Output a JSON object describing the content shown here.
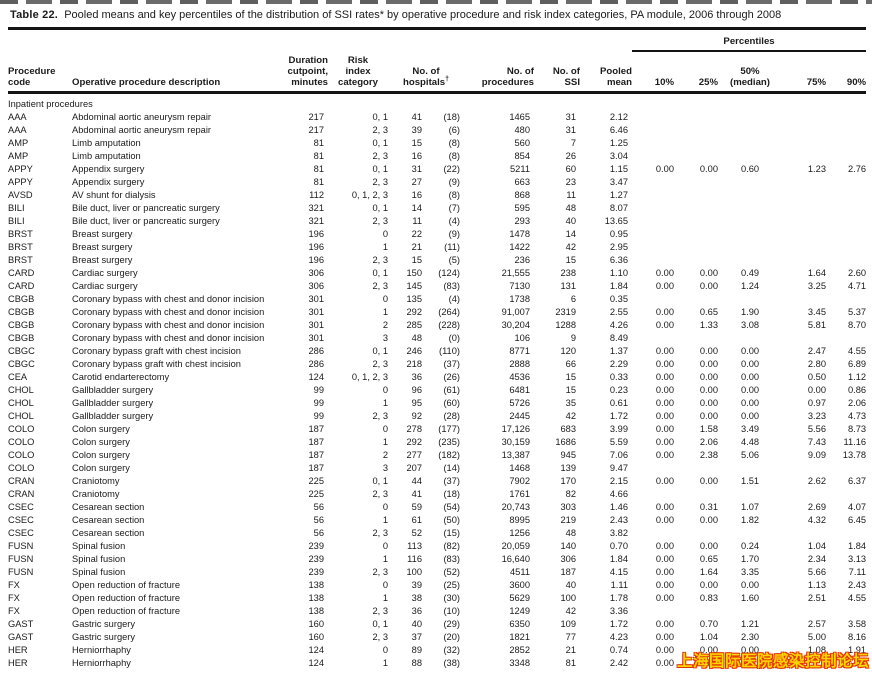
{
  "title": {
    "label": "Table 22.",
    "text": "Pooled means and key percentiles of the distribution of SSI rates* by operative procedure and risk index categories, PA module, 2006 through 2008"
  },
  "header": {
    "percentiles_label": "Percentiles",
    "columns": {
      "code": "Procedure\ncode",
      "desc": "Operative procedure description",
      "duration": "Duration\ncutpoint,\nminutes",
      "risk": "Risk\nindex\ncategory",
      "hospitals": "No. of\nhospitals",
      "hospitals_sup": "†",
      "procedures": "No. of\nprocedures",
      "ssi": "No. of\nSSI",
      "mean": "Pooled\nmean",
      "p10": "10%",
      "p25": "25%",
      "p50": "50%\n(median)",
      "p75": "75%",
      "p90": "90%"
    }
  },
  "table": {
    "section_label": "Inpatient procedures",
    "rows": [
      [
        "AAA",
        "Abdominal aortic aneurysm repair",
        "217",
        "0, 1",
        "41",
        "(18)",
        "1465",
        "31",
        "2.12",
        "",
        "",
        "",
        "",
        ""
      ],
      [
        "AAA",
        "Abdominal aortic aneurysm repair",
        "217",
        "2, 3",
        "39",
        "(6)",
        "480",
        "31",
        "6.46",
        "",
        "",
        "",
        "",
        ""
      ],
      [
        "AMP",
        "Limb amputation",
        "81",
        "0, 1",
        "15",
        "(8)",
        "560",
        "7",
        "1.25",
        "",
        "",
        "",
        "",
        ""
      ],
      [
        "AMP",
        "Limb amputation",
        "81",
        "2, 3",
        "16",
        "(8)",
        "854",
        "26",
        "3.04",
        "",
        "",
        "",
        "",
        ""
      ],
      [
        "APPY",
        "Appendix surgery",
        "81",
        "0, 1",
        "31",
        "(22)",
        "5211",
        "60",
        "1.15",
        "0.00",
        "0.00",
        "0.60",
        "1.23",
        "2.76"
      ],
      [
        "APPY",
        "Appendix surgery",
        "81",
        "2, 3",
        "27",
        "(9)",
        "663",
        "23",
        "3.47",
        "",
        "",
        "",
        "",
        ""
      ],
      [
        "AVSD",
        "AV shunt for dialysis",
        "112",
        "0, 1, 2, 3",
        "16",
        "(8)",
        "868",
        "11",
        "1.27",
        "",
        "",
        "",
        "",
        ""
      ],
      [
        "BILI",
        "Bile duct, liver or pancreatic surgery",
        "321",
        "0, 1",
        "14",
        "(7)",
        "595",
        "48",
        "8.07",
        "",
        "",
        "",
        "",
        ""
      ],
      [
        "BILI",
        "Bile duct, liver or pancreatic surgery",
        "321",
        "2, 3",
        "11",
        "(4)",
        "293",
        "40",
        "13.65",
        "",
        "",
        "",
        "",
        ""
      ],
      [
        "BRST",
        "Breast surgery",
        "196",
        "0",
        "22",
        "(9)",
        "1478",
        "14",
        "0.95",
        "",
        "",
        "",
        "",
        ""
      ],
      [
        "BRST",
        "Breast surgery",
        "196",
        "1",
        "21",
        "(11)",
        "1422",
        "42",
        "2.95",
        "",
        "",
        "",
        "",
        ""
      ],
      [
        "BRST",
        "Breast surgery",
        "196",
        "2, 3",
        "15",
        "(5)",
        "236",
        "15",
        "6.36",
        "",
        "",
        "",
        "",
        ""
      ],
      [
        "CARD",
        "Cardiac surgery",
        "306",
        "0, 1",
        "150",
        "(124)",
        "21,555",
        "238",
        "1.10",
        "0.00",
        "0.00",
        "0.49",
        "1.64",
        "2.60"
      ],
      [
        "CARD",
        "Cardiac surgery",
        "306",
        "2, 3",
        "145",
        "(83)",
        "7130",
        "131",
        "1.84",
        "0.00",
        "0.00",
        "1.24",
        "3.25",
        "4.71"
      ],
      [
        "CBGB",
        "Coronary bypass with chest and donor incision",
        "301",
        "0",
        "135",
        "(4)",
        "1738",
        "6",
        "0.35",
        "",
        "",
        "",
        "",
        ""
      ],
      [
        "CBGB",
        "Coronary bypass with chest and donor incision",
        "301",
        "1",
        "292",
        "(264)",
        "91,007",
        "2319",
        "2.55",
        "0.00",
        "0.65",
        "1.90",
        "3.45",
        "5.37"
      ],
      [
        "CBGB",
        "Coronary bypass with chest and donor incision",
        "301",
        "2",
        "285",
        "(228)",
        "30,204",
        "1288",
        "4.26",
        "0.00",
        "1.33",
        "3.08",
        "5.81",
        "8.70"
      ],
      [
        "CBGB",
        "Coronary bypass with chest and donor incision",
        "301",
        "3",
        "48",
        "(0)",
        "106",
        "9",
        "8.49",
        "",
        "",
        "",
        "",
        ""
      ],
      [
        "CBGC",
        "Coronary bypass graft with chest incision",
        "286",
        "0, 1",
        "246",
        "(110)",
        "8771",
        "120",
        "1.37",
        "0.00",
        "0.00",
        "0.00",
        "2.47",
        "4.55"
      ],
      [
        "CBGC",
        "Coronary bypass graft with chest incision",
        "286",
        "2, 3",
        "218",
        "(37)",
        "2888",
        "66",
        "2.29",
        "0.00",
        "0.00",
        "0.00",
        "2.80",
        "6.89"
      ],
      [
        "CEA",
        "Carotid endarterectomy",
        "124",
        "0, 1, 2, 3",
        "36",
        "(26)",
        "4536",
        "15",
        "0.33",
        "0.00",
        "0.00",
        "0.00",
        "0.50",
        "1.12"
      ],
      [
        "CHOL",
        "Gallbladder surgery",
        "99",
        "0",
        "96",
        "(61)",
        "6481",
        "15",
        "0.23",
        "0.00",
        "0.00",
        "0.00",
        "0.00",
        "0.86"
      ],
      [
        "CHOL",
        "Gallbladder surgery",
        "99",
        "1",
        "95",
        "(60)",
        "5726",
        "35",
        "0.61",
        "0.00",
        "0.00",
        "0.00",
        "0.97",
        "2.06"
      ],
      [
        "CHOL",
        "Gallbladder surgery",
        "99",
        "2, 3",
        "92",
        "(28)",
        "2445",
        "42",
        "1.72",
        "0.00",
        "0.00",
        "0.00",
        "3.23",
        "4.73"
      ],
      [
        "COLO",
        "Colon surgery",
        "187",
        "0",
        "278",
        "(177)",
        "17,126",
        "683",
        "3.99",
        "0.00",
        "1.58",
        "3.49",
        "5.56",
        "8.73"
      ],
      [
        "COLO",
        "Colon surgery",
        "187",
        "1",
        "292",
        "(235)",
        "30,159",
        "1686",
        "5.59",
        "0.00",
        "2.06",
        "4.48",
        "7.43",
        "11.16"
      ],
      [
        "COLO",
        "Colon surgery",
        "187",
        "2",
        "277",
        "(182)",
        "13,387",
        "945",
        "7.06",
        "0.00",
        "2.38",
        "5.06",
        "9.09",
        "13.78"
      ],
      [
        "COLO",
        "Colon surgery",
        "187",
        "3",
        "207",
        "(14)",
        "1468",
        "139",
        "9.47",
        "",
        "",
        "",
        "",
        ""
      ],
      [
        "CRAN",
        "Craniotomy",
        "225",
        "0, 1",
        "44",
        "(37)",
        "7902",
        "170",
        "2.15",
        "0.00",
        "0.00",
        "1.51",
        "2.62",
        "6.37"
      ],
      [
        "CRAN",
        "Craniotomy",
        "225",
        "2, 3",
        "41",
        "(18)",
        "1761",
        "82",
        "4.66",
        "",
        "",
        "",
        "",
        ""
      ],
      [
        "CSEC",
        "Cesarean section",
        "56",
        "0",
        "59",
        "(54)",
        "20,743",
        "303",
        "1.46",
        "0.00",
        "0.31",
        "1.07",
        "2.69",
        "4.07"
      ],
      [
        "CSEC",
        "Cesarean section",
        "56",
        "1",
        "61",
        "(50)",
        "8995",
        "219",
        "2.43",
        "0.00",
        "0.00",
        "1.82",
        "4.32",
        "6.45"
      ],
      [
        "CSEC",
        "Cesarean section",
        "56",
        "2, 3",
        "52",
        "(15)",
        "1256",
        "48",
        "3.82",
        "",
        "",
        "",
        "",
        ""
      ],
      [
        "FUSN",
        "Spinal fusion",
        "239",
        "0",
        "113",
        "(82)",
        "20,059",
        "140",
        "0.70",
        "0.00",
        "0.00",
        "0.24",
        "1.04",
        "1.84"
      ],
      [
        "FUSN",
        "Spinal fusion",
        "239",
        "1",
        "116",
        "(83)",
        "16,640",
        "306",
        "1.84",
        "0.00",
        "0.65",
        "1.70",
        "2.34",
        "3.13"
      ],
      [
        "FUSN",
        "Spinal fusion",
        "239",
        "2, 3",
        "100",
        "(52)",
        "4511",
        "187",
        "4.15",
        "0.00",
        "1.64",
        "3.35",
        "5.66",
        "7.11"
      ],
      [
        "FX",
        "Open reduction of fracture",
        "138",
        "0",
        "39",
        "(25)",
        "3600",
        "40",
        "1.11",
        "0.00",
        "0.00",
        "0.00",
        "1.13",
        "2.43"
      ],
      [
        "FX",
        "Open reduction of fracture",
        "138",
        "1",
        "38",
        "(30)",
        "5629",
        "100",
        "1.78",
        "0.00",
        "0.83",
        "1.60",
        "2.51",
        "4.55"
      ],
      [
        "FX",
        "Open reduction of fracture",
        "138",
        "2, 3",
        "36",
        "(10)",
        "1249",
        "42",
        "3.36",
        "",
        "",
        "",
        "",
        ""
      ],
      [
        "GAST",
        "Gastric surgery",
        "160",
        "0, 1",
        "40",
        "(29)",
        "6350",
        "109",
        "1.72",
        "0.00",
        "0.70",
        "1.21",
        "2.57",
        "3.58"
      ],
      [
        "GAST",
        "Gastric surgery",
        "160",
        "2, 3",
        "37",
        "(20)",
        "1821",
        "77",
        "4.23",
        "0.00",
        "1.04",
        "2.30",
        "5.00",
        "8.16"
      ],
      [
        "HER",
        "Herniorrhaphy",
        "124",
        "0",
        "89",
        "(32)",
        "2852",
        "21",
        "0.74",
        "0.00",
        "0.00",
        "0.00",
        "1.08",
        "1.91"
      ],
      [
        "HER",
        "Herniorrhaphy",
        "124",
        "1",
        "88",
        "(38)",
        "3348",
        "81",
        "2.42",
        "0.00",
        "0.00",
        "",
        "",
        ""
      ]
    ]
  },
  "watermark": {
    "text": "上海国际医院感染控制论坛",
    "fill_color": "#ffd400",
    "outline_color": "#e03400"
  }
}
